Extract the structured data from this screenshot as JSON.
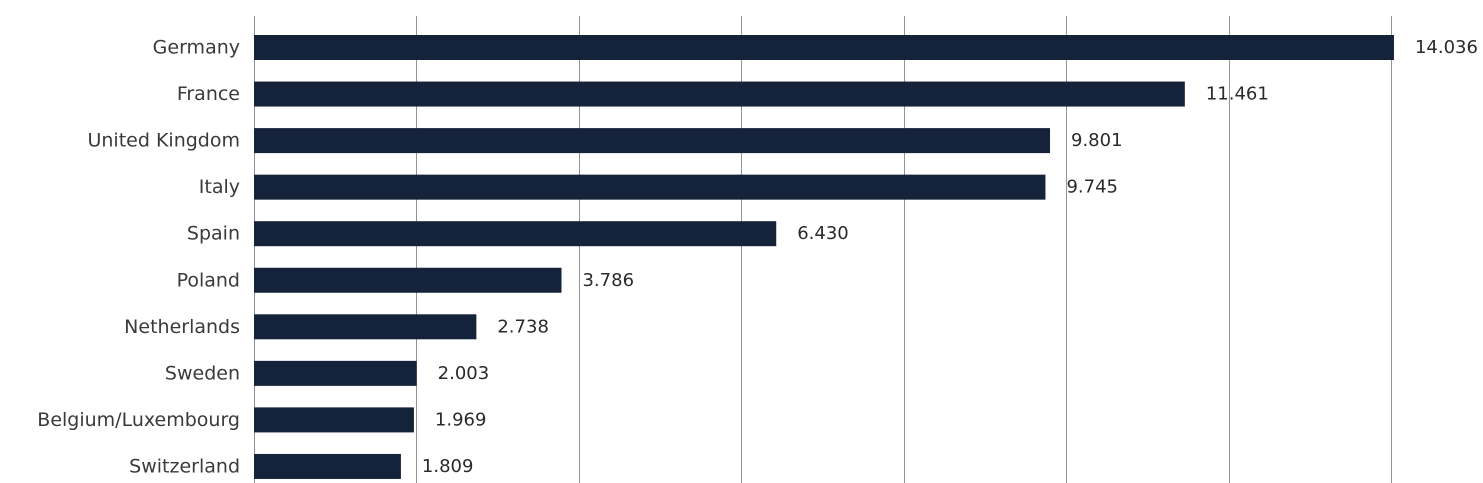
{
  "chart_data": {
    "type": "bar",
    "orientation": "horizontal",
    "categories": [
      "Germany",
      "France",
      "United Kingdom",
      "Italy",
      "Spain",
      "Poland",
      "Netherlands",
      "Sweden",
      "Belgium/Luxembourg",
      "Switzerland"
    ],
    "values": [
      14036,
      11461,
      9801,
      9745,
      6430,
      3786,
      2738,
      2003,
      1969,
      1809
    ],
    "value_labels": [
      "14.036",
      "11.461",
      "9.801",
      "9.745",
      "6.430",
      "3.786",
      "2.738",
      "2.003",
      "1.969",
      "1.809"
    ],
    "xlim": [
      0,
      14000
    ],
    "grid_step": 2000,
    "grid": true,
    "legend": "none",
    "bar_color": "#14223a",
    "grid_color": "#8e959c"
  }
}
